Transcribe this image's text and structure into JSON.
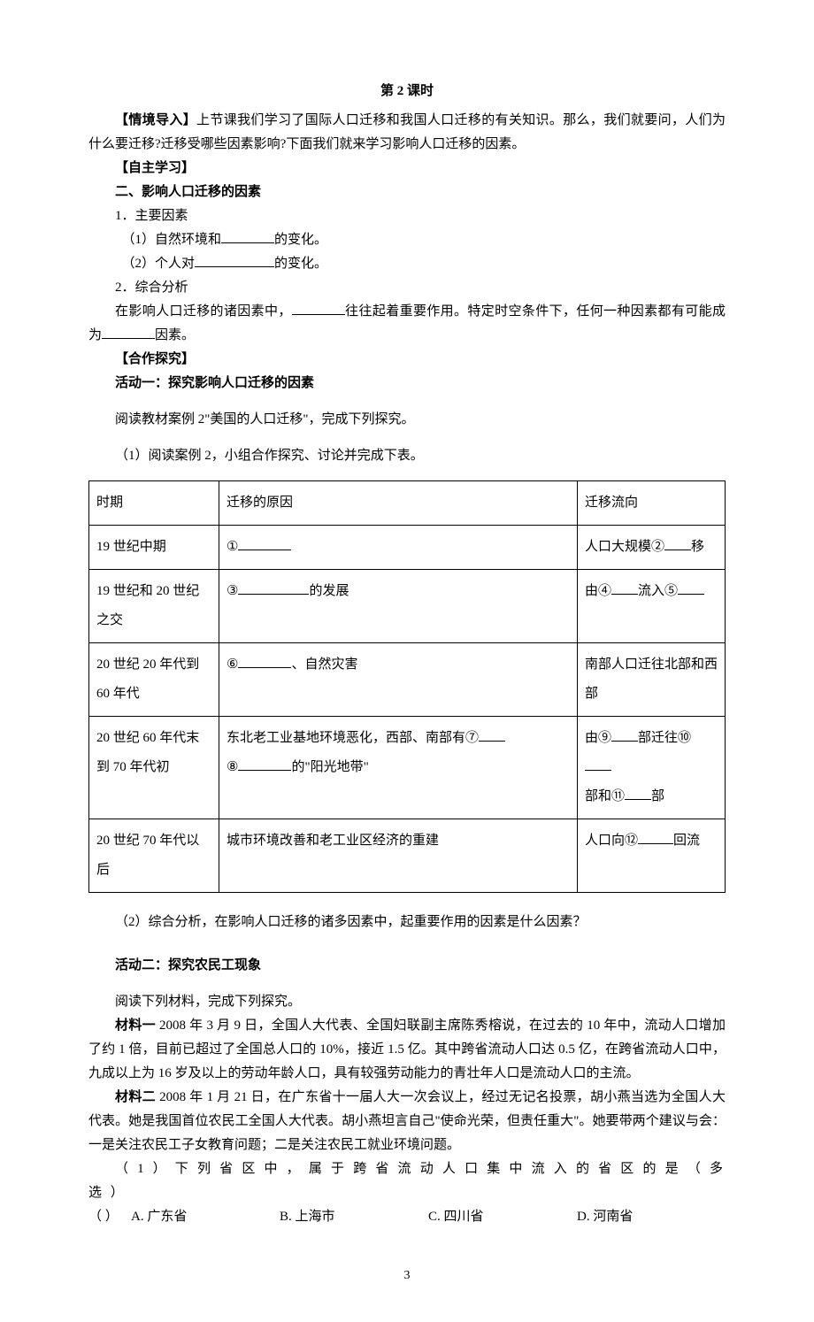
{
  "page": {
    "title": "第 2 课时",
    "pagenum": "3"
  },
  "intro": {
    "label": "【情境导入】",
    "text": "上节课我们学习了国际人口迁移和我国人口迁移的有关知识。那么，我们就要问，人们为什么要迁移?迁移受哪些因素影响?下面我们就来学习影响人口迁移的因素。"
  },
  "self_study": {
    "label": "【自主学习】",
    "heading": "二、影响人口迁移的因素",
    "p1": "1．主要因素",
    "p1a_pre": "（1）自然环境和",
    "p1a_post": "的变化。",
    "p1b_pre": "（2）个人对",
    "p1b_post": "的变化。",
    "p2": "2．综合分析",
    "p2a_pre": "在影响人口迁移的诸因素中，",
    "p2a_mid": "往往起着重要作用。特定时空条件下，任何一种因素都有可能成为",
    "p2a_post": "因素。"
  },
  "coop": {
    "label": "【合作探究】",
    "act1_title": "活动一：探究影响人口迁移的因素",
    "act1_read": "阅读教材案例 2\"美国的人口迁移\"，完成下列探究。",
    "act1_q1": "（1）阅读案例 2，小组合作探究、讨论并完成下表。",
    "act1_q2": "（2）综合分析，在影响人口迁移的诸多因素中，起重要作用的因素是什么因素？",
    "act2_title": "活动二：探究农民工现象",
    "act2_read": "阅读下列材料，完成下列探究。"
  },
  "table": {
    "headers": {
      "period": "时期",
      "reason": "迁移的原因",
      "flow": "迁移流向"
    },
    "rows": [
      {
        "period": "19 世纪中期",
        "reason_pre": "①",
        "reason_post": "",
        "flow_pre": "人口大规模②",
        "flow_post": "移"
      },
      {
        "period": "19 世纪和 20 世纪之交",
        "reason_pre": "③",
        "reason_post": "的发展",
        "flow_pre": "由④",
        "flow_mid": "流入⑤",
        "flow_post": ""
      },
      {
        "period": "20 世纪 20 年代到 60 年代",
        "reason_pre": "⑥",
        "reason_post": "、自然灾害",
        "flow": "南部人口迁往北部和西部"
      },
      {
        "period": "20 世纪 60 年代末到 70 年代初",
        "reason_line1_pre": "东北老工业基地环境恶化，西部、南部有⑦",
        "reason_line2_pre": "⑧",
        "reason_line2_post": "的\"阳光地带\"",
        "flow_pre": "由⑨",
        "flow_mid1": "部迁往⑩",
        "flow_mid2": "部和⑪",
        "flow_post": "部"
      },
      {
        "period": "20 世纪 70 年代以后",
        "reason": "城市环境改善和老工业区经济的重建",
        "flow_pre": "人口向⑫",
        "flow_post": "回流"
      }
    ]
  },
  "material1": {
    "label": "材料一",
    "text": "  2008 年 3 月 9 日，全国人大代表、全国妇联副主席陈秀榕说，在过去的 10 年中，流动人口增加了约 1 倍，目前已超过了全国总人口的 10%，接近 1.5 亿。其中跨省流动人口达 0.5 亿，在跨省流动人口中，九成以上为 16 岁及以上的劳动年龄人口，具有较强劳动能力的青壮年人口是流动人口的主流。"
  },
  "material2": {
    "label": "材料二",
    "text": "  2008 年 1 月 21 日，在广东省十一届人大一次会议上，经过无记名投票，胡小燕当选为全国人大代表。她是我国首位农民工全国人大代表。胡小燕坦言自己\"使命光荣，但责任重大\"。她要带两个建议与会：一是关注农民工子女教育问题；二是关注农民工就业环境问题。"
  },
  "question1": {
    "stem_a": "（ 1 ） 下 列 省 区 中 ， 属 于 跨 省 流 动 人 口 集 中 流 入 的 省 区 的 是 （ 多 选 ）",
    "stem_b": "（       ）",
    "optA": "A. 广东省",
    "optB": "B. 上海市",
    "optC": "C. 四川省",
    "optD": "D. 河南省"
  }
}
